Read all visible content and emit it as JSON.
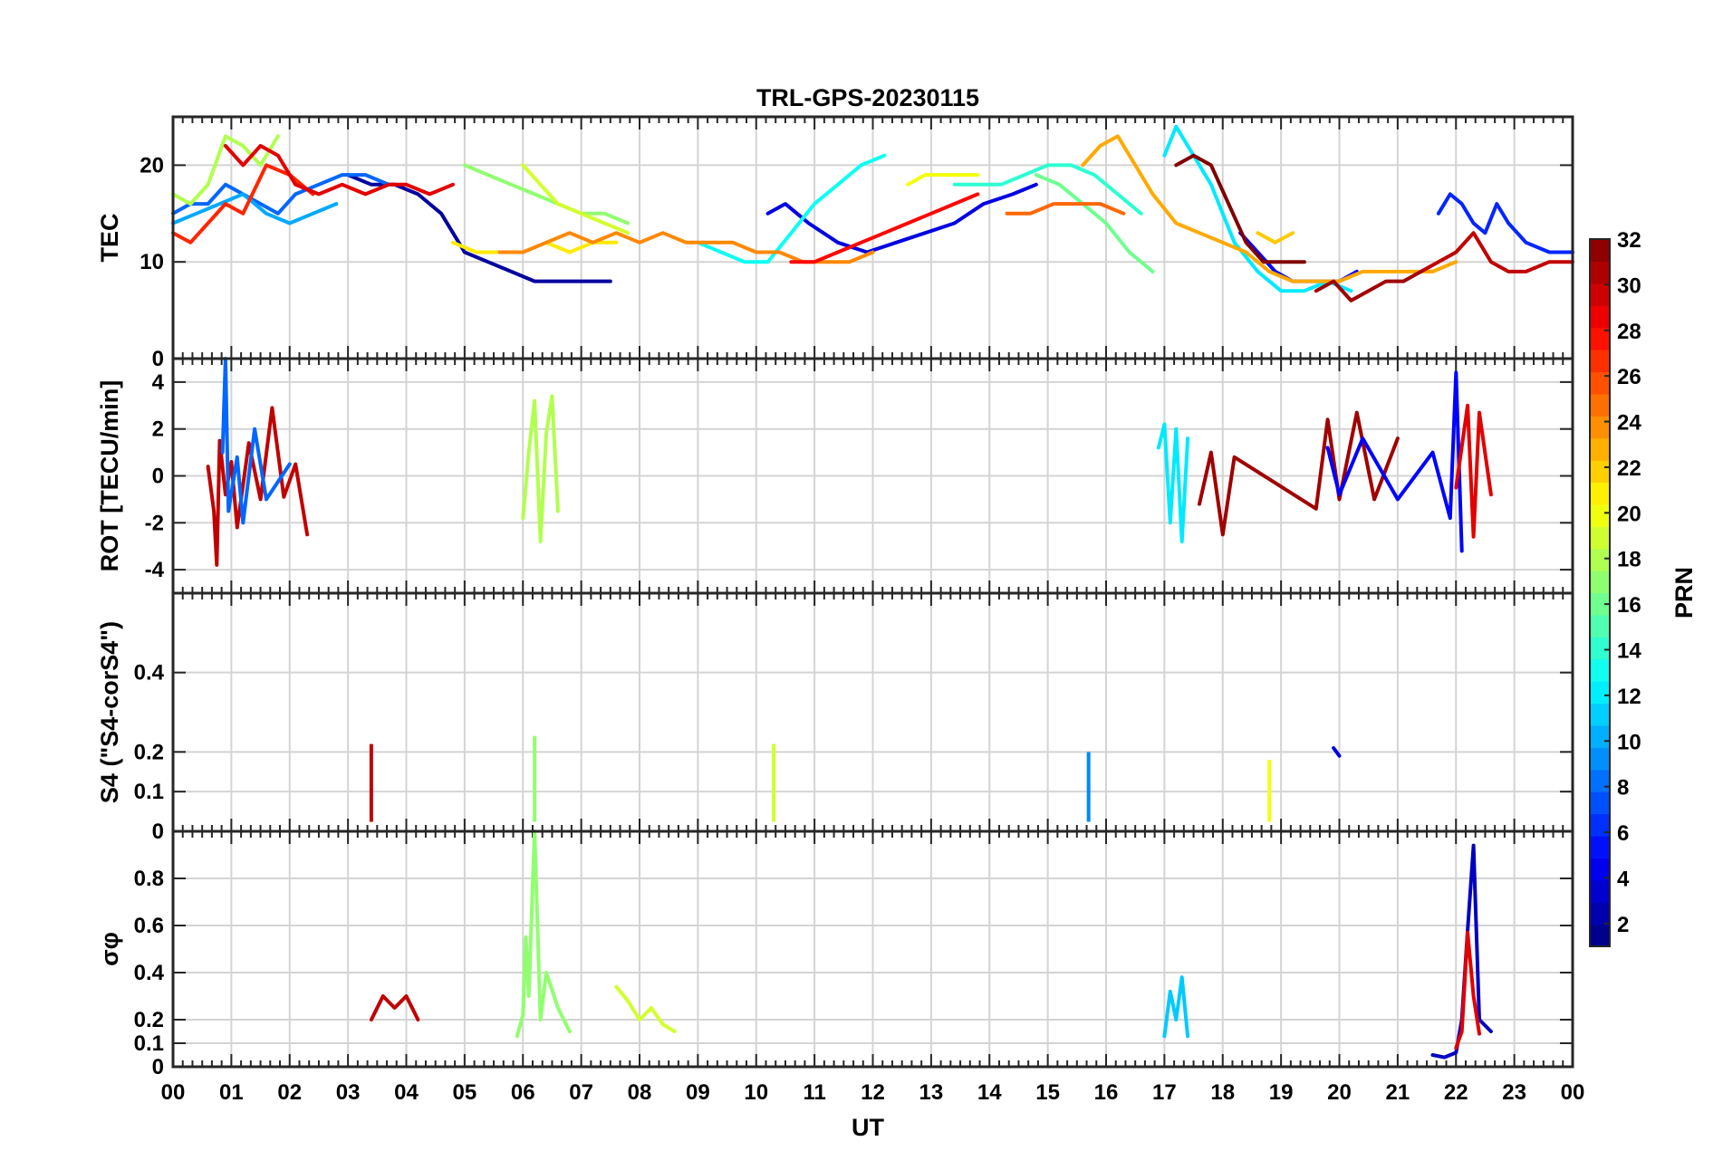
{
  "chart_data": {
    "title": "TRL-GPS-20230115",
    "xlabel": "UT",
    "x_ticks": [
      "00",
      "01",
      "02",
      "03",
      "04",
      "05",
      "06",
      "07",
      "08",
      "09",
      "10",
      "11",
      "12",
      "13",
      "14",
      "15",
      "16",
      "17",
      "18",
      "19",
      "20",
      "21",
      "22",
      "23",
      "00"
    ],
    "xlim": [
      0,
      24
    ],
    "colorbar": {
      "label": "PRN",
      "range": [
        1,
        32
      ],
      "ticks": [
        "2",
        "4",
        "6",
        "8",
        "10",
        "12",
        "14",
        "16",
        "18",
        "20",
        "22",
        "24",
        "26",
        "28",
        "30",
        "32"
      ],
      "colormap": "jet"
    },
    "panels": [
      {
        "type": "line",
        "ylabel": "TEC",
        "ylim": [
          0,
          25
        ],
        "yticks": [
          "0",
          "10",
          "20"
        ],
        "grid": true,
        "series": [
          {
            "prn": 2,
            "x": [
              3.0,
              3.4,
              3.8,
              4.2,
              4.6,
              5.0,
              5.4,
              5.8,
              6.2,
              6.6,
              7.0,
              7.5
            ],
            "y": [
              19,
              18,
              18,
              17,
              15,
              11,
              10,
              9,
              8,
              8,
              8,
              8
            ]
          },
          {
            "prn": 4,
            "x": [
              10.2,
              10.5,
              10.9,
              11.4,
              11.9,
              12.4,
              12.9,
              13.4,
              13.9,
              14.4,
              14.8
            ],
            "y": [
              15,
              16,
              14,
              12,
              11,
              12,
              13,
              14,
              16,
              17,
              18
            ]
          },
          {
            "prn": 5,
            "x": [
              18.3,
              18.6,
              18.9,
              19.2,
              19.6,
              20.0,
              20.3
            ],
            "y": [
              13,
              11,
              9,
              8,
              8,
              8,
              9
            ]
          },
          {
            "prn": 6,
            "x": [
              21.7,
              21.9,
              22.1,
              22.3,
              22.5,
              22.7,
              22.9,
              23.2,
              23.6,
              24.0
            ],
            "y": [
              15,
              17,
              16,
              14,
              13,
              16,
              14,
              12,
              11,
              11
            ]
          },
          {
            "prn": 8,
            "x": [
              0.0,
              0.3,
              0.6,
              0.9,
              1.2,
              1.5,
              1.8,
              2.1,
              2.5,
              2.9,
              3.3,
              3.7
            ],
            "y": [
              15,
              16,
              16,
              18,
              17,
              16,
              15,
              17,
              18,
              19,
              19,
              18
            ]
          },
          {
            "prn": 10,
            "x": [
              0.0,
              0.4,
              0.8,
              1.2,
              1.6,
              2.0,
              2.4,
              2.8
            ],
            "y": [
              14,
              15,
              16,
              17,
              15,
              14,
              15,
              16
            ]
          },
          {
            "prn": 12,
            "x": [
              17.0,
              17.2,
              17.4,
              17.8,
              18.2,
              18.6,
              19.0,
              19.4,
              19.8,
              20.2
            ],
            "y": [
              21,
              24,
              22,
              18,
              12,
              9,
              7,
              7,
              8,
              7
            ]
          },
          {
            "prn": 13,
            "x": [
              9.0,
              9.4,
              9.8,
              10.2,
              10.6,
              11.0,
              11.4,
              11.8,
              12.2
            ],
            "y": [
              12,
              11,
              10,
              10,
              13,
              16,
              18,
              20,
              21
            ]
          },
          {
            "prn": 14,
            "x": [
              13.4,
              13.8,
              14.2,
              14.6,
              15.0,
              15.4,
              15.8,
              16.2,
              16.6
            ],
            "y": [
              18,
              18,
              18,
              19,
              20,
              20,
              19,
              17,
              15
            ]
          },
          {
            "prn": 16,
            "x": [
              14.8,
              15.2,
              15.6,
              16.0,
              16.4,
              16.8
            ],
            "y": [
              19,
              18,
              16,
              14,
              11,
              9
            ]
          },
          {
            "prn": 17,
            "x": [
              5.0,
              5.4,
              5.8,
              6.2,
              6.6,
              7.0,
              7.4,
              7.8
            ],
            "y": [
              20,
              19,
              18,
              17,
              16,
              15,
              15,
              14
            ]
          },
          {
            "prn": 18,
            "x": [
              0.0,
              0.3,
              0.6,
              0.9,
              1.2,
              1.5,
              1.8
            ],
            "y": [
              17,
              16,
              18,
              23,
              22,
              20,
              23
            ]
          },
          {
            "prn": 19,
            "x": [
              6.0,
              6.3,
              6.6,
              7.0,
              7.4,
              7.8
            ],
            "y": [
              20,
              18,
              16,
              15,
              14,
              13
            ]
          },
          {
            "prn": 20,
            "x": [
              12.6,
              12.9,
              13.2,
              13.5,
              13.8
            ],
            "y": [
              18,
              19,
              19,
              19,
              19
            ]
          },
          {
            "prn": 21,
            "x": [
              4.8,
              5.2,
              5.6,
              6.0,
              6.4,
              6.8,
              7.2,
              7.6
            ],
            "y": [
              12,
              11,
              11,
              11,
              12,
              11,
              12,
              12
            ]
          },
          {
            "prn": 22,
            "x": [
              18.6,
              18.9,
              19.2
            ],
            "y": [
              13,
              12,
              13
            ]
          },
          {
            "prn": 23,
            "x": [
              15.6,
              15.9,
              16.2,
              16.5,
              16.8,
              17.2,
              17.6,
              18.0,
              18.4,
              18.8,
              19.2,
              19.6,
              20.0,
              20.4,
              20.8,
              21.2,
              21.6,
              22.0
            ],
            "y": [
              20,
              22,
              23,
              20,
              17,
              14,
              13,
              12,
              11,
              9,
              8,
              8,
              8,
              9,
              9,
              9,
              9,
              10
            ]
          },
          {
            "prn": 24,
            "x": [
              5.6,
              6.0,
              6.4,
              6.8,
              7.2,
              7.6,
              8.0,
              8.4,
              8.8,
              9.2,
              9.6,
              10.0,
              10.4,
              10.8,
              11.2,
              11.6,
              12.0
            ],
            "y": [
              11,
              11,
              12,
              13,
              12,
              13,
              12,
              13,
              12,
              12,
              12,
              11,
              11,
              10,
              10,
              10,
              11
            ]
          },
          {
            "prn": 25,
            "x": [
              14.3,
              14.7,
              15.1,
              15.5,
              15.9,
              16.3
            ],
            "y": [
              15,
              15,
              16,
              16,
              16,
              15
            ]
          },
          {
            "prn": 27,
            "x": [
              0.0,
              0.3,
              0.6,
              0.9,
              1.2,
              1.6,
              2.0,
              2.4
            ],
            "y": [
              13,
              12,
              14,
              16,
              15,
              20,
              19,
              17
            ]
          },
          {
            "prn": 28,
            "x": [
              10.6,
              11.0,
              11.4,
              11.8,
              12.2,
              12.6,
              13.0,
              13.4,
              13.8
            ],
            "y": [
              10,
              10,
              11,
              12,
              13,
              14,
              15,
              16,
              17
            ]
          },
          {
            "prn": 29,
            "x": [
              0.9,
              1.2,
              1.5,
              1.8,
              2.1,
              2.5,
              2.9,
              3.3,
              3.7,
              4.0,
              4.4,
              4.8
            ],
            "y": [
              22,
              20,
              22,
              21,
              18,
              17,
              18,
              17,
              18,
              18,
              17,
              18
            ]
          },
          {
            "prn": 30,
            "x": [
              21.4,
              21.7,
              22.0,
              22.3,
              22.6,
              22.9,
              23.2,
              23.6,
              24.0
            ],
            "y": [
              9,
              10,
              11,
              13,
              10,
              9,
              9,
              10,
              10
            ]
          },
          {
            "prn": 31,
            "x": [
              19.6,
              19.9,
              20.2,
              20.5,
              20.8,
              21.1,
              21.4
            ],
            "y": [
              7,
              8,
              6,
              7,
              8,
              8,
              9
            ]
          },
          {
            "prn": 32,
            "x": [
              17.2,
              17.5,
              17.8,
              18.1,
              18.4,
              18.7,
              19.0,
              19.4
            ],
            "y": [
              20,
              21,
              20,
              16,
              12,
              10,
              10,
              10
            ]
          }
        ]
      },
      {
        "type": "line",
        "ylabel": "ROT [TECU/min]",
        "ylim": [
          -5,
          5
        ],
        "yticks": [
          "-4",
          "-2",
          "0",
          "2",
          "4"
        ],
        "grid": true,
        "series": [
          {
            "prn": 30,
            "x": [
              0.6,
              0.7,
              0.75,
              0.8,
              0.9,
              1.0,
              1.1,
              1.3,
              1.5,
              1.7,
              1.9,
              2.1,
              2.3
            ],
            "y": [
              0.4,
              -1.5,
              -3.8,
              1.5,
              -0.8,
              0.6,
              -2.2,
              1.4,
              -1.0,
              2.9,
              -0.9,
              0.5,
              -2.5
            ]
          },
          {
            "prn": 8,
            "x": [
              0.85,
              0.9,
              0.95,
              1.1,
              1.2,
              1.4,
              1.6,
              2.0
            ],
            "y": [
              1.0,
              5.0,
              -1.5,
              0.8,
              -2.0,
              2.0,
              -1.0,
              0.5
            ]
          },
          {
            "prn": 18,
            "x": [
              6.0,
              6.1,
              6.2,
              6.3,
              6.4,
              6.5,
              6.6
            ],
            "y": [
              -1.8,
              1.0,
              3.2,
              -2.8,
              1.8,
              3.4,
              -1.5
            ]
          },
          {
            "prn": 12,
            "x": [
              16.9,
              17.0,
              17.1,
              17.2,
              17.3,
              17.4
            ],
            "y": [
              1.2,
              2.2,
              -2.0,
              2.0,
              -2.8,
              1.6
            ]
          },
          {
            "prn": 31,
            "x": [
              17.6,
              17.8,
              18.0,
              18.2,
              19.6,
              19.8,
              20.0,
              20.3,
              20.6,
              21.0
            ],
            "y": [
              -1.2,
              1.0,
              -2.5,
              0.8,
              -1.4,
              2.4,
              -1.0,
              2.7,
              -1.0,
              1.6
            ]
          },
          {
            "prn": 5,
            "x": [
              19.8,
              20.0,
              20.4,
              21.0,
              21.6,
              21.9,
              22.0,
              22.1
            ],
            "y": [
              1.2,
              -0.8,
              1.6,
              -1.0,
              1.0,
              -1.8,
              4.4,
              -3.2
            ]
          },
          {
            "prn": 29,
            "x": [
              22.0,
              22.2,
              22.3,
              22.4,
              22.6
            ],
            "y": [
              -0.5,
              3.0,
              -2.6,
              2.7,
              -0.8
            ]
          }
        ]
      },
      {
        "type": "line",
        "ylabel": "S4 (\"S4-corS4\")",
        "ylim": [
          0,
          0.6
        ],
        "yticks": [
          "0",
          "0.1",
          "0.2",
          "0.4"
        ],
        "grid": true,
        "series": [
          {
            "prn": 30,
            "x": [
              3.4
            ],
            "y": [
              0.22
            ]
          },
          {
            "prn": 17,
            "x": [
              6.2
            ],
            "y": [
              0.24
            ]
          },
          {
            "prn": 19,
            "x": [
              10.3
            ],
            "y": [
              0.22
            ]
          },
          {
            "prn": 9,
            "x": [
              15.7
            ],
            "y": [
              0.2
            ]
          },
          {
            "prn": 20,
            "x": [
              18.8
            ],
            "y": [
              0.18
            ]
          },
          {
            "prn": 4,
            "x": [
              19.9,
              20.0
            ],
            "y": [
              0.21,
              0.19
            ]
          }
        ]
      },
      {
        "type": "line",
        "ylabel": "σφ",
        "ylim": [
          0,
          1
        ],
        "yticks": [
          "0",
          "0.1",
          "0.2",
          "0.4",
          "0.6",
          "0.8"
        ],
        "grid": true,
        "series": [
          {
            "prn": 17,
            "x": [
              5.9,
              6.0,
              6.05,
              6.1,
              6.2,
              6.3,
              6.4,
              6.6,
              6.8
            ],
            "y": [
              0.13,
              0.22,
              0.55,
              0.3,
              1.0,
              0.2,
              0.4,
              0.25,
              0.15
            ]
          },
          {
            "prn": 11,
            "x": [
              17.0,
              17.1,
              17.2,
              17.3,
              17.4
            ],
            "y": [
              0.13,
              0.32,
              0.2,
              0.38,
              0.13
            ]
          },
          {
            "prn": 3,
            "x": [
              21.6,
              21.8,
              22.0,
              22.1,
              22.2,
              22.3,
              22.4,
              22.6
            ],
            "y": [
              0.05,
              0.04,
              0.06,
              0.2,
              0.58,
              0.94,
              0.2,
              0.15
            ]
          },
          {
            "prn": 29,
            "x": [
              22.0,
              22.1,
              22.2,
              22.3,
              22.4
            ],
            "y": [
              0.08,
              0.15,
              0.57,
              0.3,
              0.14
            ]
          },
          {
            "prn": 30,
            "x": [
              3.4,
              3.6,
              3.8,
              4.0,
              4.2
            ],
            "y": [
              0.2,
              0.3,
              0.25,
              0.3,
              0.2
            ]
          },
          {
            "prn": 19,
            "x": [
              7.6,
              7.8,
              8.0,
              8.2,
              8.4,
              8.6
            ],
            "y": [
              0.34,
              0.28,
              0.2,
              0.25,
              0.18,
              0.15
            ]
          }
        ]
      }
    ]
  }
}
